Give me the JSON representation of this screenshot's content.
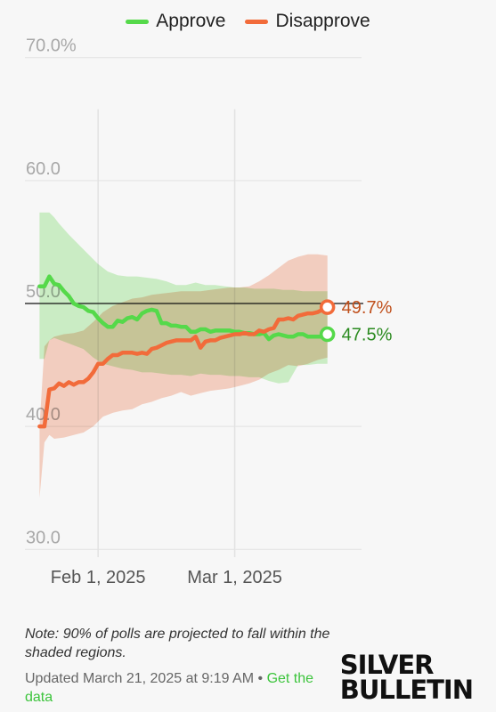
{
  "legend": {
    "approve": {
      "label": "Approve",
      "color": "#55d94a"
    },
    "disapprove": {
      "label": "Disapprove",
      "color": "#f26b3a"
    }
  },
  "chart_data": {
    "type": "line",
    "x_start": "2025-01-20",
    "x_end": "2025-03-21",
    "xlim": [
      "2025-01-17",
      "2025-03-27"
    ],
    "ylim": [
      28.5,
      71.5
    ],
    "y_ticks": [
      {
        "value": 70,
        "label": "70.0%"
      },
      {
        "value": 60,
        "label": "60.0"
      },
      {
        "value": 50,
        "label": "50.0"
      },
      {
        "value": 40,
        "label": "40.0"
      },
      {
        "value": 30,
        "label": "30.0"
      }
    ],
    "x_ticks": [
      {
        "date": "2025-02-01",
        "label": "Feb 1, 2025"
      },
      {
        "date": "2025-03-01",
        "label": "Mar 1, 2025"
      }
    ],
    "reference_line": 50,
    "grid": true,
    "legend_position": "top",
    "series": [
      {
        "name": "Approve",
        "color": "#55d94a",
        "band_color": "#bdf0b5",
        "values": [
          [
            0,
            51.4
          ],
          [
            1,
            51.4
          ],
          [
            2,
            52.2
          ],
          [
            3,
            51.6
          ],
          [
            4,
            51.5
          ],
          [
            5,
            51.0
          ],
          [
            6,
            50.6
          ],
          [
            7,
            50.0
          ],
          [
            8,
            49.8
          ],
          [
            9,
            49.7
          ],
          [
            10,
            49.4
          ],
          [
            11,
            49.3
          ],
          [
            12,
            48.8
          ],
          [
            13,
            48.4
          ],
          [
            14,
            48.1
          ],
          [
            15,
            48.1
          ],
          [
            16,
            48.6
          ],
          [
            17,
            48.5
          ],
          [
            18,
            48.8
          ],
          [
            19,
            48.9
          ],
          [
            20,
            48.7
          ],
          [
            21,
            49.2
          ],
          [
            22,
            49.4
          ],
          [
            23,
            49.5
          ],
          [
            24,
            49.4
          ],
          [
            25,
            48.4
          ],
          [
            26,
            48.4
          ],
          [
            27,
            48.2
          ],
          [
            28,
            48.2
          ],
          [
            29,
            48.1
          ],
          [
            30,
            48.1
          ],
          [
            31,
            47.7
          ],
          [
            32,
            47.7
          ],
          [
            33,
            47.9
          ],
          [
            34,
            47.9
          ],
          [
            35,
            47.7
          ],
          [
            36,
            47.8
          ],
          [
            37,
            47.8
          ],
          [
            38,
            47.8
          ],
          [
            39,
            47.8
          ],
          [
            40,
            47.7
          ],
          [
            41,
            47.7
          ],
          [
            42,
            47.6
          ],
          [
            43,
            47.6
          ],
          [
            44,
            47.5
          ],
          [
            45,
            47.5
          ],
          [
            46,
            47.6
          ],
          [
            47,
            47.1
          ],
          [
            48,
            47.4
          ],
          [
            49,
            47.5
          ],
          [
            50,
            47.4
          ],
          [
            51,
            47.3
          ],
          [
            52,
            47.3
          ],
          [
            53,
            47.5
          ],
          [
            54,
            47.5
          ],
          [
            55,
            47.3
          ],
          [
            56,
            47.3
          ],
          [
            57,
            47.3
          ],
          [
            58,
            47.3
          ],
          [
            59,
            47.5
          ]
        ],
        "upper": [
          [
            0,
            57.4
          ],
          [
            2,
            57.4
          ],
          [
            3,
            57.0
          ],
          [
            4,
            56.5
          ],
          [
            6,
            55.6
          ],
          [
            8,
            54.8
          ],
          [
            10,
            54.0
          ],
          [
            12,
            53.2
          ],
          [
            14,
            52.6
          ],
          [
            16,
            52.3
          ],
          [
            18,
            52.2
          ],
          [
            20,
            52.2
          ],
          [
            22,
            52.1
          ],
          [
            24,
            52.0
          ],
          [
            26,
            51.8
          ],
          [
            28,
            51.5
          ],
          [
            30,
            51.5
          ],
          [
            32,
            51.7
          ],
          [
            34,
            51.5
          ],
          [
            36,
            51.5
          ],
          [
            38,
            51.4
          ],
          [
            40,
            51.3
          ],
          [
            42,
            51.3
          ],
          [
            44,
            51.2
          ],
          [
            46,
            51.2
          ],
          [
            48,
            51.2
          ],
          [
            50,
            51.1
          ],
          [
            52,
            51.1
          ],
          [
            54,
            51.0
          ],
          [
            56,
            51.0
          ],
          [
            58,
            51.0
          ],
          [
            59,
            51.0
          ]
        ],
        "lower": [
          [
            0,
            45.5
          ],
          [
            1,
            45.5
          ],
          [
            2,
            47.0
          ],
          [
            3,
            47.2
          ],
          [
            5,
            46.9
          ],
          [
            7,
            46.6
          ],
          [
            9,
            46.3
          ],
          [
            11,
            45.6
          ],
          [
            13,
            45.1
          ],
          [
            15,
            44.9
          ],
          [
            17,
            44.7
          ],
          [
            19,
            44.6
          ],
          [
            21,
            44.4
          ],
          [
            23,
            44.4
          ],
          [
            25,
            44.3
          ],
          [
            27,
            44.2
          ],
          [
            29,
            44.2
          ],
          [
            31,
            44.1
          ],
          [
            33,
            44.3
          ],
          [
            35,
            44.2
          ],
          [
            37,
            44.2
          ],
          [
            39,
            44.1
          ],
          [
            41,
            44.1
          ],
          [
            43,
            44.0
          ],
          [
            45,
            44.0
          ],
          [
            47,
            43.7
          ],
          [
            49,
            43.5
          ],
          [
            51,
            43.6
          ],
          [
            53,
            45.0
          ],
          [
            55,
            45.0
          ],
          [
            57,
            45.1
          ],
          [
            59,
            45.1
          ]
        ]
      },
      {
        "name": "Disapprove",
        "color": "#f26b3a",
        "band_color": "#f8c2ad",
        "values": [
          [
            0,
            40.0
          ],
          [
            1,
            40.0
          ],
          [
            2,
            43.0
          ],
          [
            3,
            43.1
          ],
          [
            4,
            43.5
          ],
          [
            5,
            43.3
          ],
          [
            6,
            43.6
          ],
          [
            7,
            43.4
          ],
          [
            8,
            43.6
          ],
          [
            9,
            43.6
          ],
          [
            10,
            43.9
          ],
          [
            11,
            44.4
          ],
          [
            12,
            45.1
          ],
          [
            13,
            45.1
          ],
          [
            14,
            45.5
          ],
          [
            15,
            45.8
          ],
          [
            16,
            45.8
          ],
          [
            17,
            46.0
          ],
          [
            18,
            46.0
          ],
          [
            19,
            46.0
          ],
          [
            20,
            45.9
          ],
          [
            21,
            46.0
          ],
          [
            22,
            45.9
          ],
          [
            23,
            46.3
          ],
          [
            24,
            46.4
          ],
          [
            25,
            46.6
          ],
          [
            26,
            46.8
          ],
          [
            27,
            46.9
          ],
          [
            28,
            47.0
          ],
          [
            29,
            47.0
          ],
          [
            30,
            47.0
          ],
          [
            31,
            47.0
          ],
          [
            32,
            47.3
          ],
          [
            33,
            46.4
          ],
          [
            34,
            46.9
          ],
          [
            35,
            47.0
          ],
          [
            36,
            47.0
          ],
          [
            37,
            47.2
          ],
          [
            38,
            47.3
          ],
          [
            39,
            47.4
          ],
          [
            40,
            47.5
          ],
          [
            41,
            47.5
          ],
          [
            42,
            47.6
          ],
          [
            43,
            47.5
          ],
          [
            44,
            47.5
          ],
          [
            45,
            47.8
          ],
          [
            46,
            47.7
          ],
          [
            47,
            47.9
          ],
          [
            48,
            48.0
          ],
          [
            49,
            48.7
          ],
          [
            50,
            48.7
          ],
          [
            51,
            48.8
          ],
          [
            52,
            48.7
          ],
          [
            53,
            49.0
          ],
          [
            54,
            49.1
          ],
          [
            55,
            49.2
          ],
          [
            56,
            49.2
          ],
          [
            57,
            49.3
          ],
          [
            58,
            49.5
          ],
          [
            59,
            49.7
          ]
        ],
        "upper": [
          [
            0,
            40.0
          ],
          [
            1,
            46.5
          ],
          [
            2,
            47.0
          ],
          [
            3,
            47.3
          ],
          [
            5,
            47.5
          ],
          [
            7,
            47.6
          ],
          [
            9,
            47.8
          ],
          [
            11,
            48.5
          ],
          [
            13,
            49.3
          ],
          [
            15,
            49.8
          ],
          [
            17,
            50.1
          ],
          [
            19,
            50.4
          ],
          [
            21,
            50.5
          ],
          [
            23,
            50.7
          ],
          [
            25,
            50.8
          ],
          [
            27,
            50.9
          ],
          [
            29,
            51.0
          ],
          [
            31,
            51.0
          ],
          [
            33,
            51.0
          ],
          [
            35,
            51.1
          ],
          [
            37,
            51.2
          ],
          [
            39,
            51.3
          ],
          [
            41,
            51.3
          ],
          [
            43,
            51.4
          ],
          [
            45,
            51.8
          ],
          [
            47,
            52.3
          ],
          [
            49,
            52.9
          ],
          [
            51,
            53.5
          ],
          [
            53,
            53.8
          ],
          [
            55,
            54.0
          ],
          [
            57,
            54.0
          ],
          [
            59,
            53.9
          ]
        ],
        "lower": [
          [
            0,
            34.2
          ],
          [
            1,
            38.7
          ],
          [
            2,
            39.3
          ],
          [
            3,
            39.0
          ],
          [
            5,
            39.1
          ],
          [
            7,
            39.3
          ],
          [
            9,
            39.5
          ],
          [
            11,
            40.0
          ],
          [
            13,
            40.8
          ],
          [
            15,
            41.1
          ],
          [
            17,
            41.3
          ],
          [
            19,
            41.4
          ],
          [
            21,
            41.8
          ],
          [
            23,
            42.0
          ],
          [
            25,
            42.3
          ],
          [
            27,
            42.5
          ],
          [
            29,
            42.8
          ],
          [
            31,
            42.5
          ],
          [
            33,
            42.7
          ],
          [
            35,
            42.9
          ],
          [
            37,
            43.0
          ],
          [
            39,
            43.1
          ],
          [
            41,
            43.3
          ],
          [
            43,
            43.5
          ],
          [
            45,
            43.8
          ],
          [
            47,
            44.3
          ],
          [
            49,
            44.6
          ],
          [
            51,
            45.0
          ],
          [
            53,
            44.9
          ],
          [
            55,
            45.1
          ],
          [
            57,
            45.4
          ],
          [
            59,
            45.6
          ]
        ]
      }
    ],
    "end_labels": [
      {
        "series": "Disapprove",
        "value": 49.7,
        "text": "49.7%",
        "color": "#c0501c"
      },
      {
        "series": "Approve",
        "value": 47.5,
        "text": "47.5%",
        "color": "#2a8a1f"
      }
    ]
  },
  "note": "Note: 90% of polls are projected to fall within the shaded regions.",
  "updated": {
    "text": "Updated March 21, 2025 at 9:19 AM •",
    "link_label": "Get the data"
  },
  "brand": {
    "line1": "SILVER",
    "line2": "BULLETIN"
  }
}
